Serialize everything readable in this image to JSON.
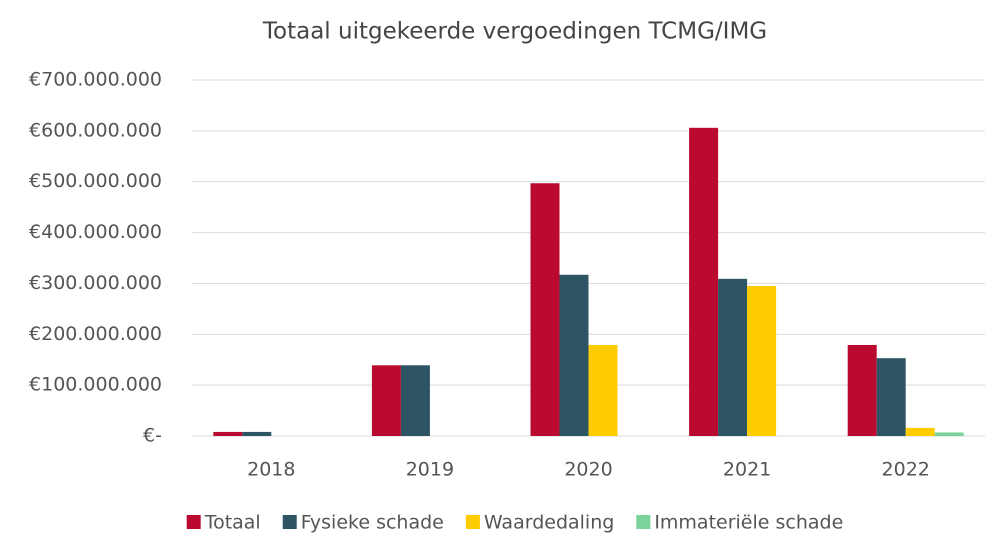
{
  "chart_data": {
    "type": "bar",
    "title": "Totaal uitgekeerde vergoedingen TCMG/IMG",
    "categories": [
      "2018",
      "2019",
      "2020",
      "2021",
      "2022"
    ],
    "series": [
      {
        "name": "Totaal",
        "color": "#bb0a30",
        "values": [
          8000000,
          139000000,
          497000000,
          606000000,
          179000000
        ]
      },
      {
        "name": "Fysieke schade",
        "color": "#2d5463",
        "values": [
          8000000,
          139000000,
          317000000,
          309000000,
          153000000
        ]
      },
      {
        "name": "Waardedaling",
        "color": "#ffcc00",
        "values": [
          0,
          0,
          179000000,
          295000000,
          16000000
        ]
      },
      {
        "name": "Immateriële schade",
        "color": "#7ad39a",
        "values": [
          0,
          0,
          0,
          0,
          7000000
        ]
      }
    ],
    "ylim": [
      0,
      700000000
    ],
    "yticks": [
      {
        "value": 0,
        "label": "€-"
      },
      {
        "value": 100000000,
        "label": "€100.000.000"
      },
      {
        "value": 200000000,
        "label": "€200.000.000"
      },
      {
        "value": 300000000,
        "label": "€300.000.000"
      },
      {
        "value": 400000000,
        "label": "€400.000.000"
      },
      {
        "value": 500000000,
        "label": "€500.000.000"
      },
      {
        "value": 600000000,
        "label": "€600.000.000"
      },
      {
        "value": 700000000,
        "label": "€700.000.000"
      }
    ],
    "grid": true,
    "legend": "bottom"
  }
}
